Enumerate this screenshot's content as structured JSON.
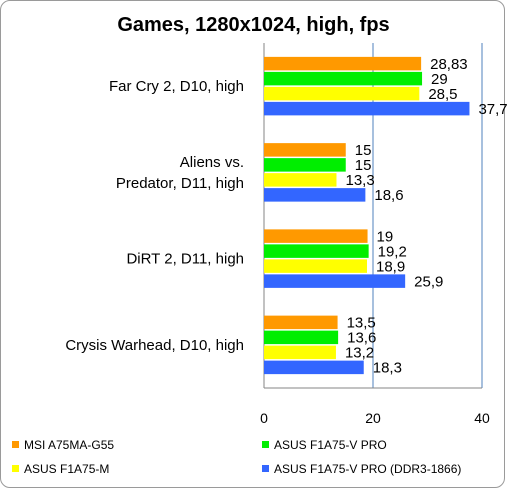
{
  "chart_data": {
    "type": "bar",
    "orientation": "horizontal",
    "title": "Games, 1280x1024, high, fps",
    "categories": [
      [
        "Far Cry 2, D10, high"
      ],
      [
        "Aliens vs.",
        "Predator, D11, high"
      ],
      [
        "DiRT 2,  D11, high"
      ],
      [
        "Crysis Warhead, D10, high"
      ]
    ],
    "series": [
      {
        "name": "MSI A75MA-G55",
        "color": "#ff9900",
        "values": [
          28.83,
          15,
          19,
          13.5
        ],
        "labels": [
          "28,83",
          "15",
          "19",
          "13,5"
        ]
      },
      {
        "name": "ASUS F1A75-V PRO",
        "color": "#00ee00",
        "values": [
          29,
          15,
          19.2,
          13.6
        ],
        "labels": [
          "29",
          "15",
          "19,2",
          "13,6"
        ]
      },
      {
        "name": "ASUS F1A75-M",
        "color": "#ffff00",
        "values": [
          28.5,
          13.3,
          18.9,
          13.2
        ],
        "labels": [
          "28,5",
          "13,3",
          "18,9",
          "13,2"
        ]
      },
      {
        "name": "ASUS F1A75-V PRO (DDR3-1866)",
        "color": "#3366ff",
        "values": [
          37.7,
          18.6,
          25.9,
          18.3
        ],
        "labels": [
          "37,7",
          "18,6",
          "25,9",
          "18,3"
        ]
      }
    ],
    "xlim": [
      0,
      40
    ],
    "xticks": [
      "0",
      "20",
      "40"
    ],
    "grid": true,
    "legend": "bottom"
  }
}
